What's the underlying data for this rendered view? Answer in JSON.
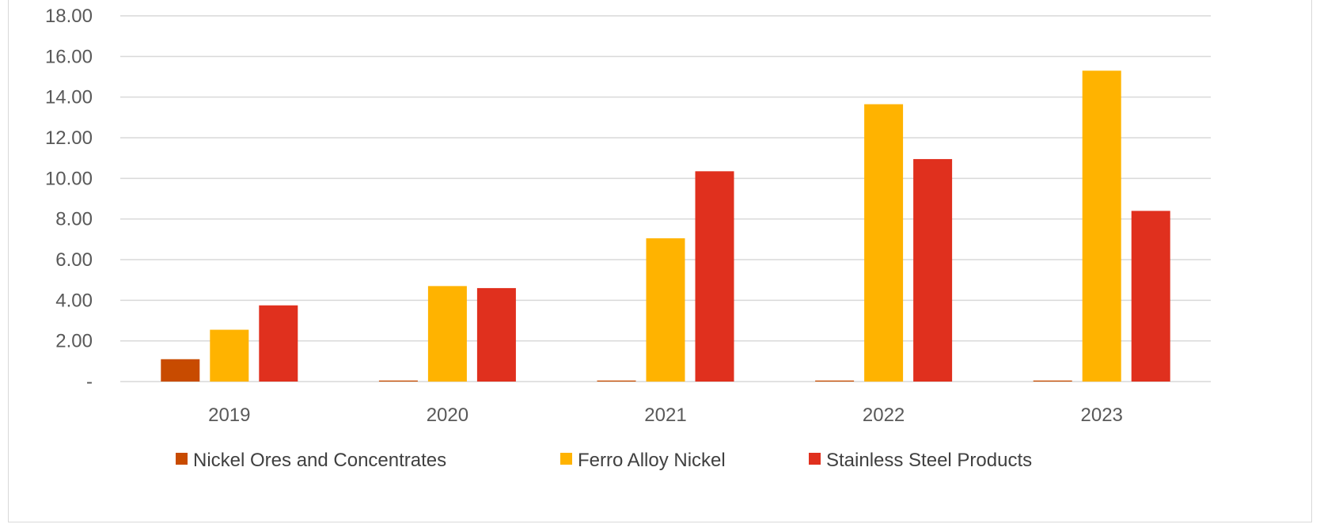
{
  "chart_data": {
    "type": "bar",
    "title": "",
    "xlabel": "",
    "ylabel": "",
    "categories": [
      "2019",
      "2020",
      "2021",
      "2022",
      "2023"
    ],
    "series": [
      {
        "name": "Nickel Ores and Concentrates",
        "color": "#c84b00",
        "values": [
          1.1,
          0.05,
          0.05,
          0.05,
          0.05
        ]
      },
      {
        "name": "Ferro Alloy Nickel",
        "color": "#ffb300",
        "values": [
          2.55,
          4.7,
          7.05,
          13.65,
          15.3
        ]
      },
      {
        "name": "Stainless Steel Products",
        "color": "#e0301e",
        "values": [
          3.75,
          4.6,
          10.35,
          10.95,
          8.4
        ]
      }
    ],
    "ylim": [
      0,
      18
    ],
    "yticks": [
      "-",
      "2.00",
      "4.00",
      "6.00",
      "8.00",
      "10.00",
      "12.00",
      "14.00",
      "16.00",
      "18.00"
    ],
    "grid": true,
    "legend_position": "bottom"
  }
}
